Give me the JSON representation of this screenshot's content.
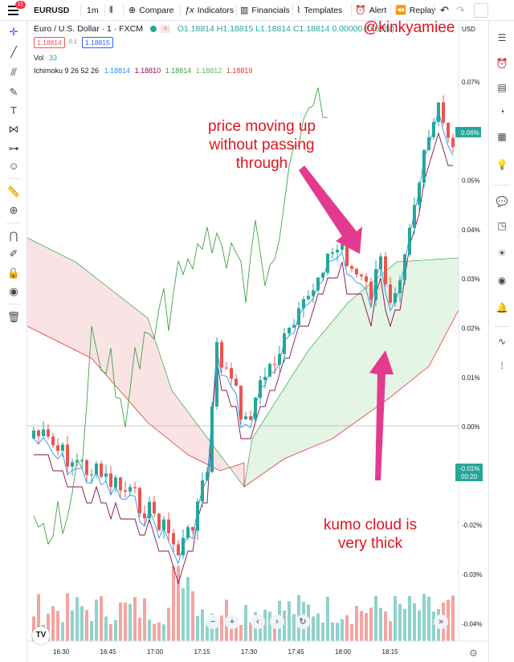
{
  "topbar": {
    "menu_badge": "11",
    "symbol": "EURUSD",
    "interval": "1m",
    "compare": "Compare",
    "indicators": "Indicators",
    "financials": "Financials",
    "templates": "Templates",
    "alert": "Alert",
    "replay": "Replay"
  },
  "legend": {
    "title": "Euro / U.S. Dollar · 1 · FXCM",
    "ohlc": "O1.18814 H1.18815 L1.18814 C1.18814 0.00000 (0.00%)",
    "sell_price": "1.18814",
    "spread": "0.1",
    "buy_price": "1.18815",
    "vol_label": "Vol",
    "vol_value": "33",
    "ichimoku_label": "Ichimoku 9 26 52 26",
    "ichi_values": [
      "1.18814",
      "1.18810",
      "1.18814",
      "1.18812",
      "1.18819"
    ]
  },
  "colors": {
    "up": "#26a69a",
    "down": "#ef5350",
    "tenkan": "#2196f3",
    "kijun": "#880e4f",
    "chikou": "#43a047",
    "span_a": "#4caf50",
    "span_b": "#e53935",
    "annotation": "#e0141e",
    "arrow": "#e33a8f"
  },
  "axis": {
    "currency": "USD",
    "y_ticks": [
      "0.07%",
      "0.06%",
      "0.05%",
      "0.04%",
      "0.03%",
      "0.02%",
      "0.01%",
      "0.00%",
      "-0.01%",
      "-0.02%",
      "-0.03%",
      "-0.04%"
    ],
    "x_ticks": [
      "16:30",
      "16:45",
      "17:00",
      "17:15",
      "17:30",
      "17:45",
      "18:00",
      "18:15"
    ],
    "last_price_label": "0.06%",
    "live_label": "-0.01%",
    "countdown": "00:20"
  },
  "annotations": {
    "watermark": "@kinkyamiee",
    "price_note": [
      "price moving up",
      "without passing",
      "through"
    ],
    "cloud_note": [
      "kumo cloud is",
      "very thick"
    ]
  }
}
